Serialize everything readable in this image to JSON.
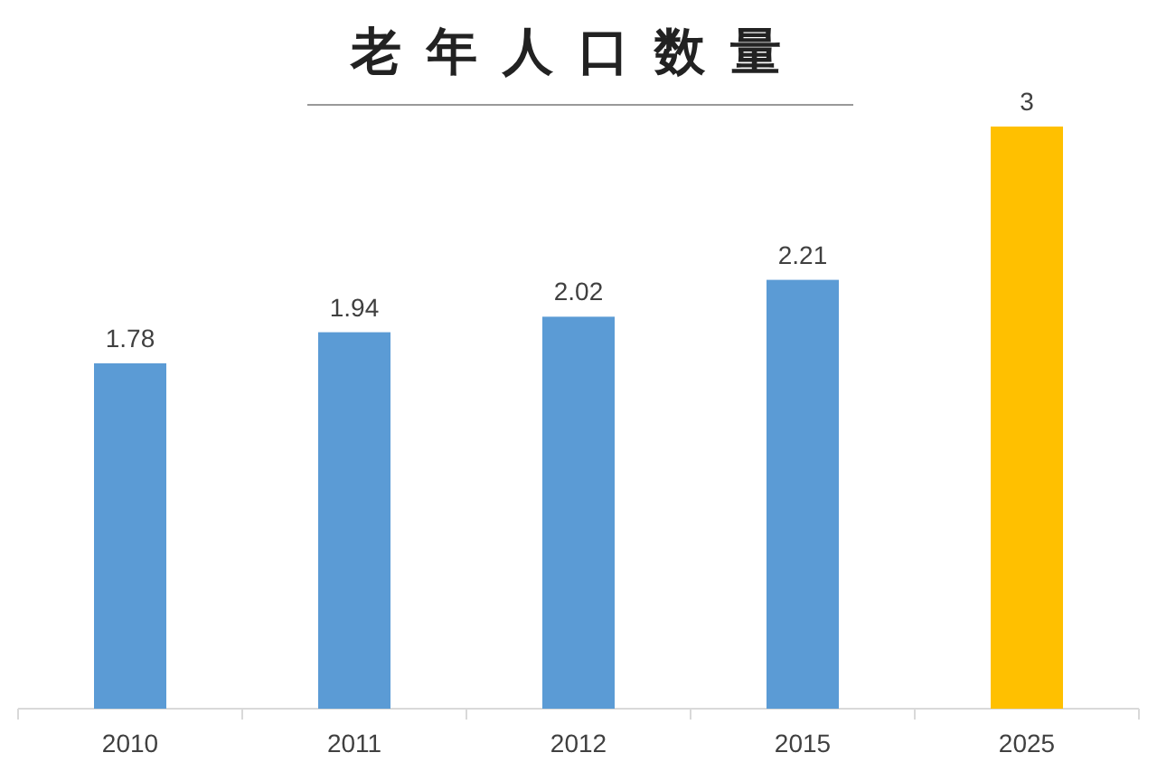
{
  "chart_data": {
    "type": "bar",
    "title": "老年人口数量",
    "categories": [
      "2010",
      "2011",
      "2012",
      "2015",
      "2025"
    ],
    "values": [
      1.78,
      1.94,
      2.02,
      2.21,
      3
    ],
    "colors": [
      "#5b9bd5",
      "#5b9bd5",
      "#5b9bd5",
      "#5b9bd5",
      "#ffc000"
    ],
    "data_labels": true
  }
}
